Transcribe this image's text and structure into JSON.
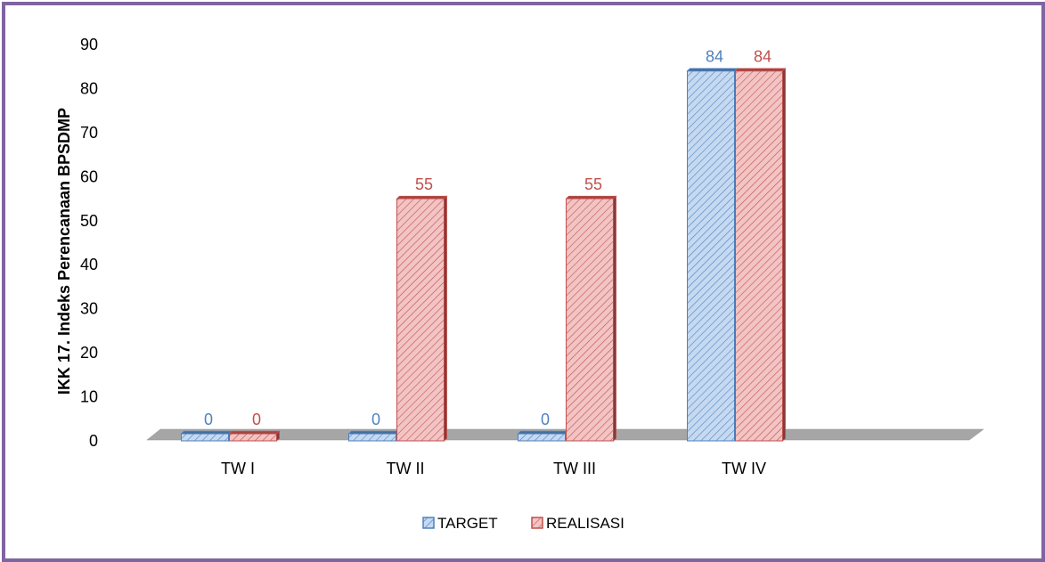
{
  "chart_data": {
    "type": "bar",
    "title": "",
    "xlabel": "",
    "ylabel": "IKK 17. Indeks Perencanaan BPSDMP",
    "categories": [
      "TW I",
      "TW II",
      "TW III",
      "TW IV"
    ],
    "ylim": [
      0,
      90
    ],
    "yticks": [
      0,
      10,
      20,
      30,
      40,
      50,
      60,
      70,
      80,
      90
    ],
    "grid": false,
    "legend_position": "bottom",
    "series": [
      {
        "name": "TARGET",
        "values": [
          0,
          0,
          0,
          84
        ],
        "color": "#4f81bd",
        "fill": "#c5d9f1"
      },
      {
        "name": "REALISASI",
        "values": [
          0,
          55,
          55,
          84
        ],
        "color": "#c0504d",
        "fill": "#f2c4c4"
      }
    ]
  },
  "colors": {
    "frame": "#8064a2",
    "floor": "#a6a6a6"
  }
}
